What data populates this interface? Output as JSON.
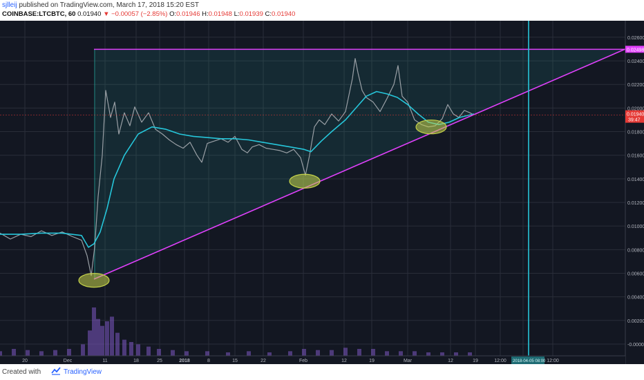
{
  "header": {
    "author": "sjlleij",
    "published_text": "published on TradingView.com, March 17, 2018 15:20 EST",
    "symbol": "COINBASE:LTCBTC, 60",
    "last_price": "0.01940",
    "change": "▼ −0.00057 (−2.85%)",
    "open_label": "O:",
    "open": "0.01946",
    "high_label": "H:",
    "high": "0.01948",
    "low_label": "L:",
    "low": "0.01939",
    "close_label": "C:",
    "close": "0.01940"
  },
  "footer": {
    "created_with": "Created with",
    "brand": "TradingView"
  },
  "colors": {
    "background": "#131722",
    "price_line": "#9aa0a6",
    "moving_average": "#26c6da",
    "trendline": "#e040fb",
    "zone_fill": "#26a69a",
    "highlight_ellipse": "#c6d34a",
    "last_price_tag": "#e53935",
    "time_cursor": "#26c6da",
    "volume": "#7e57c2"
  },
  "chart_data": {
    "type": "line",
    "symbol": "LTCBTC",
    "timeframe": "60",
    "y_axis_ticks": [
      "0.02600",
      "0.02400",
      "0.02200",
      "0.02000",
      "0.01800",
      "0.01600",
      "0.01400",
      "0.01200",
      "0.01000",
      "0.00800",
      "0.00600",
      "0.00400",
      "0.00200",
      "-0.00000"
    ],
    "y_tick_values": [
      0.026,
      0.024,
      0.022,
      0.02,
      0.018,
      0.016,
      0.014,
      0.012,
      0.01,
      0.008,
      0.006,
      0.004,
      0.002,
      0.0
    ],
    "ylim": [
      -0.0017,
      0.0274
    ],
    "x_axis_ticks": [
      "20",
      "Dec",
      "11",
      "18",
      "25",
      "2018",
      "8",
      "15",
      "22",
      "Feb",
      "12",
      "19",
      "Mar",
      "12",
      "19",
      "12:00",
      "2018-04-05 08:00",
      "12:00"
    ],
    "x_tick_positions": [
      36,
      98,
      152,
      197,
      231,
      267,
      302,
      340,
      381,
      439,
      498,
      538,
      590,
      652,
      688,
      724,
      757,
      800
    ],
    "price_series": {
      "x": [
        0,
        15,
        30,
        45,
        60,
        75,
        90,
        105,
        118,
        126,
        132,
        137,
        142,
        148,
        153,
        160,
        166,
        172,
        180,
        188,
        195,
        205,
        215,
        225,
        235,
        245,
        255,
        265,
        275,
        285,
        292,
        300,
        310,
        320,
        330,
        340,
        350,
        358,
        365,
        375,
        385,
        395,
        405,
        415,
        425,
        435,
        442,
        448,
        455,
        462,
        470,
        480,
        490,
        500,
        510,
        514,
        518,
        524,
        530,
        540,
        550,
        560,
        570,
        576,
        582,
        590,
        600,
        610,
        620,
        630,
        640,
        648,
        656,
        664,
        672,
        680,
        686
      ],
      "y": [
        0.0094,
        0.0089,
        0.0093,
        0.0091,
        0.0096,
        0.0092,
        0.0095,
        0.0091,
        0.0088,
        0.0075,
        0.0058,
        0.0082,
        0.0125,
        0.016,
        0.0215,
        0.0192,
        0.0205,
        0.0178,
        0.0196,
        0.0185,
        0.0201,
        0.0188,
        0.0196,
        0.0182,
        0.0178,
        0.0173,
        0.0169,
        0.0166,
        0.0171,
        0.016,
        0.0154,
        0.017,
        0.0172,
        0.0174,
        0.0171,
        0.0176,
        0.0165,
        0.0162,
        0.0167,
        0.0169,
        0.0166,
        0.0165,
        0.0164,
        0.0162,
        0.0165,
        0.0158,
        0.0143,
        0.016,
        0.0184,
        0.019,
        0.0186,
        0.0195,
        0.0189,
        0.0197,
        0.0225,
        0.0242,
        0.023,
        0.0215,
        0.0209,
        0.0205,
        0.0197,
        0.0208,
        0.022,
        0.0236,
        0.021,
        0.0205,
        0.019,
        0.0186,
        0.0184,
        0.0185,
        0.0191,
        0.0203,
        0.0195,
        0.0192,
        0.0198,
        0.0196,
        0.0194
      ]
    },
    "moving_average": {
      "x": [
        0,
        30,
        60,
        90,
        118,
        128,
        136,
        145,
        155,
        165,
        180,
        200,
        220,
        240,
        260,
        280,
        300,
        320,
        340,
        360,
        380,
        400,
        420,
        440,
        450,
        465,
        480,
        500,
        515,
        530,
        545,
        560,
        575,
        590,
        605,
        620,
        635,
        650,
        665,
        686
      ],
      "y": [
        0.0093,
        0.0093,
        0.0094,
        0.0094,
        0.0092,
        0.0082,
        0.0085,
        0.0095,
        0.0115,
        0.014,
        0.016,
        0.0178,
        0.0184,
        0.0182,
        0.0178,
        0.0176,
        0.0175,
        0.0174,
        0.0174,
        0.0173,
        0.0171,
        0.0169,
        0.0167,
        0.0165,
        0.0163,
        0.0172,
        0.018,
        0.019,
        0.02,
        0.021,
        0.0214,
        0.0212,
        0.0209,
        0.0203,
        0.0195,
        0.0188,
        0.0186,
        0.0188,
        0.0192,
        0.0195
      ]
    },
    "volume": {
      "x": [
        0,
        20,
        40,
        60,
        80,
        100,
        120,
        130,
        136,
        142,
        148,
        155,
        162,
        170,
        180,
        190,
        200,
        215,
        230,
        250,
        270,
        300,
        330,
        360,
        390,
        420,
        440,
        460,
        480,
        500,
        520,
        540,
        560,
        580,
        600,
        620,
        640,
        660,
        680
      ],
      "values": [
        0.0004,
        0.0006,
        0.0005,
        0.0004,
        0.0005,
        0.0006,
        0.001,
        0.0022,
        0.0042,
        0.0032,
        0.0026,
        0.003,
        0.0034,
        0.002,
        0.0014,
        0.0012,
        0.001,
        0.0008,
        0.0006,
        0.0005,
        0.0004,
        0.0004,
        0.0003,
        0.0004,
        0.0003,
        0.0004,
        0.0006,
        0.0005,
        0.0005,
        0.0007,
        0.0006,
        0.0006,
        0.0004,
        0.0004,
        0.0004,
        0.0003,
        0.0003,
        0.0003,
        0.0003
      ]
    },
    "resistance_level": 0.02498,
    "resistance_label": "0.02498",
    "last_price_label": "0.01940",
    "countdown_label": "39:47",
    "trendline": {
      "x": [
        136,
        905
      ],
      "y": [
        0.0055,
        0.025
      ]
    },
    "highlight_points": [
      {
        "x": 136,
        "y": 0.0054
      },
      {
        "x": 441,
        "y": 0.0138
      },
      {
        "x": 624,
        "y": 0.0184
      }
    ],
    "shaded_zone": {
      "x_start": 136,
      "x_end": 905
    },
    "time_cursor_x": 765
  }
}
